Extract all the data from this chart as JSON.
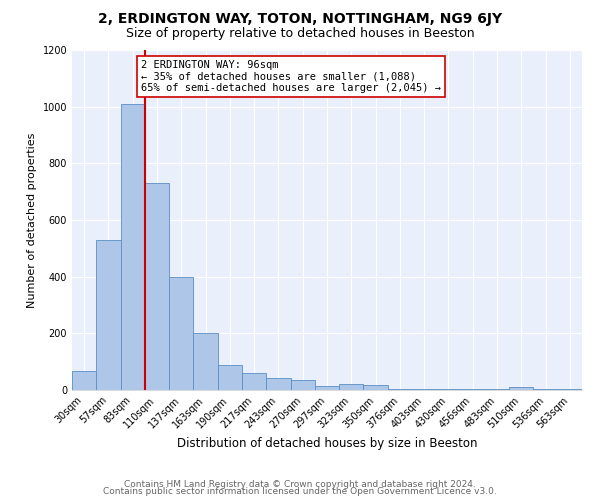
{
  "title": "2, ERDINGTON WAY, TOTON, NOTTINGHAM, NG9 6JY",
  "subtitle": "Size of property relative to detached houses in Beeston",
  "xlabel": "Distribution of detached houses by size in Beeston",
  "ylabel": "Number of detached properties",
  "categories": [
    "30sqm",
    "57sqm",
    "83sqm",
    "110sqm",
    "137sqm",
    "163sqm",
    "190sqm",
    "217sqm",
    "243sqm",
    "270sqm",
    "297sqm",
    "323sqm",
    "350sqm",
    "376sqm",
    "403sqm",
    "430sqm",
    "456sqm",
    "483sqm",
    "510sqm",
    "536sqm",
    "563sqm"
  ],
  "values": [
    68,
    530,
    1010,
    730,
    400,
    200,
    90,
    60,
    42,
    35,
    15,
    22,
    18,
    5,
    2,
    2,
    2,
    2,
    10,
    2,
    2
  ],
  "bar_color": "#aec6e8",
  "bar_edge_color": "#5a8fc4",
  "bar_width": 1.0,
  "vline_x": 2.5,
  "vline_color": "#cc0000",
  "annotation_text": "2 ERDINGTON WAY: 96sqm\n← 35% of detached houses are smaller (1,088)\n65% of semi-detached houses are larger (2,045) →",
  "annotation_box_color": "#ffffff",
  "annotation_box_edge": "#cc0000",
  "ylim": [
    0,
    1200
  ],
  "yticks": [
    0,
    200,
    400,
    600,
    800,
    1000,
    1200
  ],
  "bg_color": "#eaf0fb",
  "footer_line1": "Contains HM Land Registry data © Crown copyright and database right 2024.",
  "footer_line2": "Contains public sector information licensed under the Open Government Licence v3.0.",
  "title_fontsize": 10,
  "subtitle_fontsize": 9,
  "xlabel_fontsize": 8.5,
  "ylabel_fontsize": 8,
  "tick_fontsize": 7,
  "annot_fontsize": 7.5,
  "footer_fontsize": 6.5
}
